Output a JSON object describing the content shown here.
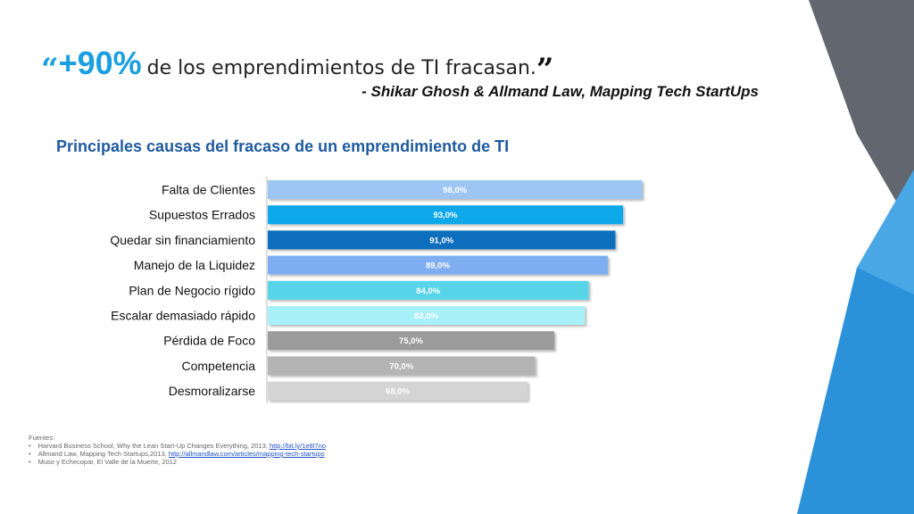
{
  "quote": {
    "open_mark": "“",
    "percent": "+90%",
    "text": "de los emprendimientos de TI fracasan.",
    "close_mark": "”",
    "attribution": "- Shikar Ghosh & Allmand Law, Mapping Tech StartUps"
  },
  "chart_data": {
    "type": "bar",
    "orientation": "horizontal",
    "title": "Principales causas del fracaso de un emprendimiento de TI",
    "categories": [
      "Falta de Clientes",
      "Supuestos Errados",
      "Quedar sin financiamiento",
      "Manejo de la Liquidez",
      "Plan de Negocio rígido",
      "Escalar demasiado rápido",
      "Pérdida de Foco",
      "Competencia",
      "Desmoralizarse"
    ],
    "values": [
      98.0,
      93.0,
      91.0,
      89.0,
      84.0,
      83.0,
      75.0,
      70.0,
      68.0
    ],
    "data_labels": [
      "98,0%",
      "93,0%",
      "91,0%",
      "89,0%",
      "84,0%",
      "83,0%",
      "75,0%",
      "70,0%",
      "68,0%"
    ],
    "colors": [
      "#9dc6f5",
      "#0aa8ea",
      "#0a6ebd",
      "#7fadf2",
      "#58d4e8",
      "#a8f0f8",
      "#9b9b9b",
      "#b4b4b4",
      "#d4d4d4"
    ],
    "label_colors": [
      "#ffffff",
      "#ffffff",
      "#ffffff",
      "#ffffff",
      "#ffffff",
      "#ffffff",
      "#ffffff",
      "#ffffff",
      "#ffffff"
    ],
    "xlim": [
      0,
      100
    ],
    "grid": false
  },
  "sources": {
    "heading": "Fuentes:",
    "items": [
      {
        "text": "Harvard Business School, Why the Lean Start-Up Changes Everything, 2013, ",
        "link": "http://bit.ly/1e8l7no"
      },
      {
        "text": "Allmand Law, Mapping Tech Startups,2013, ",
        "link": "http://allmandlaw.com/articles/mapping-tech-startups"
      },
      {
        "text": "Muso y Echecopar, El Valle de la Muerte, 2012",
        "link": ""
      }
    ]
  },
  "theme": {
    "accent": "#1a9fe0",
    "title_color": "#1f5a9e",
    "deco_gray": "#5f6470",
    "deco_blue": "#2a8fd6"
  }
}
